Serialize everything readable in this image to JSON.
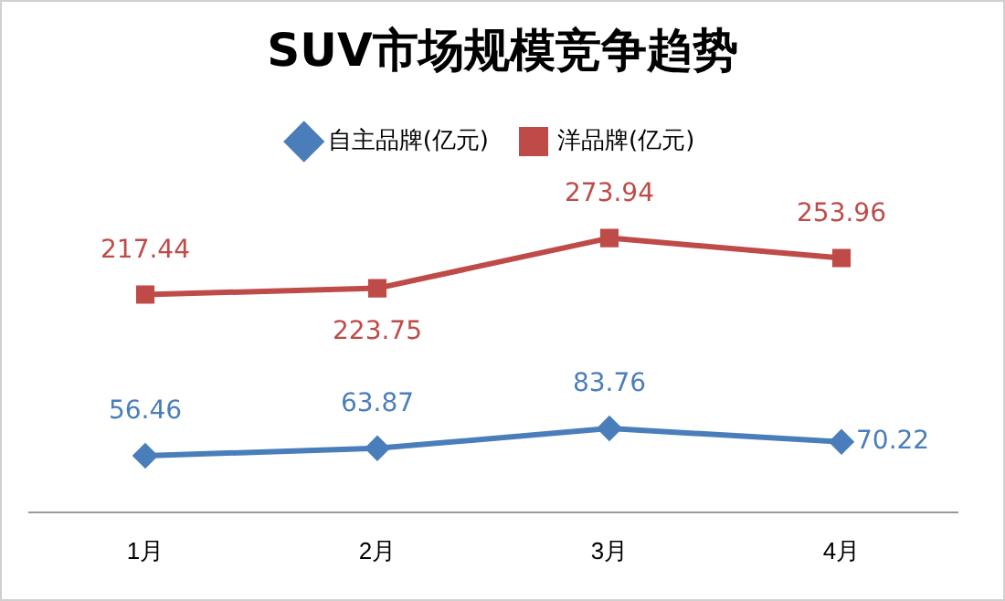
{
  "chart_data": {
    "type": "line",
    "title": "SUV市场规模竞争趋势",
    "categories": [
      "1月",
      "2月",
      "3月",
      "4月"
    ],
    "series": [
      {
        "name": "自主品牌(亿元)",
        "color": "#4a7ebb",
        "marker": "diamond",
        "values": [
          56.46,
          63.87,
          83.76,
          70.22
        ]
      },
      {
        "name": "洋品牌(亿元)",
        "color": "#be4b48",
        "marker": "square",
        "values": [
          217.44,
          223.75,
          273.94,
          253.96
        ]
      }
    ],
    "tick_labels": "x",
    "grid": false,
    "legend": "top",
    "data_labels": true
  }
}
